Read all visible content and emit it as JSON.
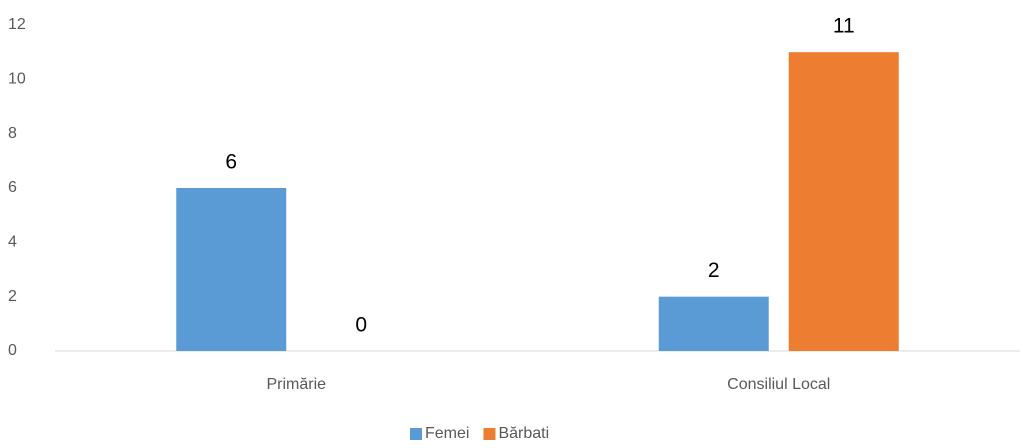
{
  "chart_data": {
    "type": "bar",
    "categories": [
      "Primărie",
      "Consiliul Local"
    ],
    "series": [
      {
        "name": "Femei",
        "color": "#5b9bd5",
        "values": [
          6,
          2
        ]
      },
      {
        "name": "Bărbati",
        "color": "#ed7d31",
        "values": [
          0,
          11
        ]
      }
    ],
    "ylim": [
      0,
      12
    ],
    "yticks": [
      0,
      2,
      4,
      6,
      8,
      10,
      12
    ],
    "grid": false,
    "legend": "bottom"
  }
}
